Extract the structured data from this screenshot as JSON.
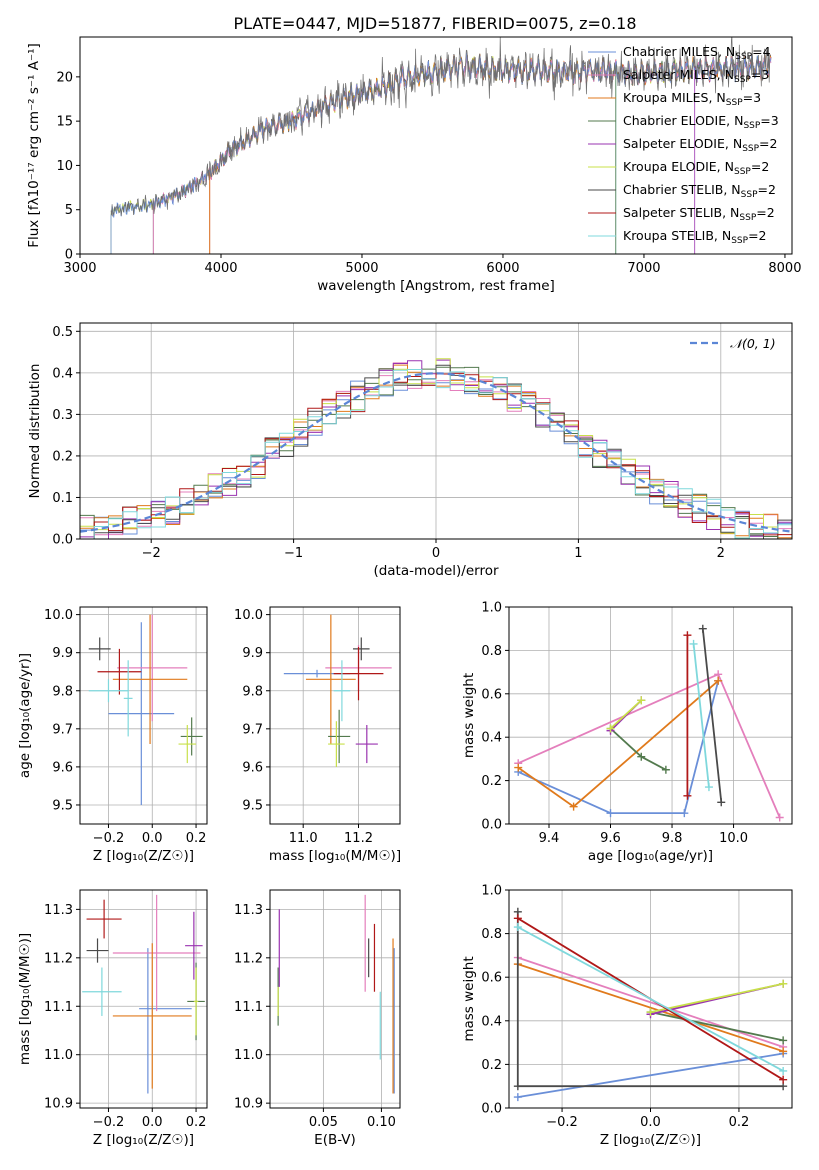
{
  "figure": {
    "title": "PLATE=0447, MJD=51877, FIBERID=0075, z=0.18"
  },
  "legend_entries": [
    {
      "name": "Chabrier MILES",
      "nssp": "4",
      "color": "#6a8fd8"
    },
    {
      "name": "Salpeter MILES",
      "nssp": "3",
      "color": "#e47fbc"
    },
    {
      "name": "Kroupa MILES",
      "nssp": "3",
      "color": "#e07a1c"
    },
    {
      "name": "Chabrier ELODIE",
      "nssp": "3",
      "color": "#537a4e"
    },
    {
      "name": "Salpeter ELODIE",
      "nssp": "2",
      "color": "#9a33b0"
    },
    {
      "name": "Kroupa ELODIE",
      "nssp": "2",
      "color": "#c8e04a"
    },
    {
      "name": "Chabrier STELIB",
      "nssp": "2",
      "color": "#4a4a4a"
    },
    {
      "name": "Salpeter STELIB",
      "nssp": "2",
      "color": "#b01818"
    },
    {
      "name": "Kroupa STELIB",
      "nssp": "2",
      "color": "#7fd8dc"
    }
  ],
  "chart_data": [
    {
      "id": "spectrum",
      "type": "line",
      "xlabel": "wavelength [Angstrom, rest frame]",
      "ylabel": "Flux [fλ10⁻¹⁷ erg cm⁻² s⁻¹ A⁻¹]",
      "xlim": [
        3000,
        8050
      ],
      "ylim": [
        0,
        24.5
      ],
      "xticks": [
        "3000",
        "4000",
        "5000",
        "6000",
        "7000",
        "8000"
      ],
      "yticks": [
        "0",
        "5",
        "10",
        "15",
        "20"
      ],
      "grid": false,
      "legend_position": "lower-right",
      "note": "continuum traced from the data curve; data shown in grey",
      "continuum": {
        "x": [
          3220,
          3300,
          3500,
          3700,
          3850,
          3950,
          4050,
          4200,
          4300,
          4500,
          4700,
          4900,
          5100,
          5300,
          5500,
          5700,
          5900,
          6100,
          6300,
          6500,
          6700,
          6900,
          7100,
          7300,
          7500,
          7700,
          7900
        ],
        "y": [
          4.8,
          5.2,
          5.5,
          6.8,
          8.2,
          9.6,
          11.5,
          13.0,
          14.2,
          15.0,
          16.5,
          17.8,
          18.5,
          19.8,
          20.5,
          21.2,
          21.0,
          20.6,
          20.8,
          20.5,
          20.8,
          20.3,
          20.6,
          20.8,
          20.9,
          21.0,
          21.2
        ]
      },
      "model_starts": [
        3220,
        3520,
        3920,
        6800,
        7360
      ]
    },
    {
      "id": "residual-histogram",
      "type": "histogram",
      "xlabel": "(data-model)/error",
      "ylabel": "Normed distribution",
      "xlim": [
        -2.5,
        2.5
      ],
      "ylim": [
        0,
        0.52
      ],
      "xticks": [
        "−2",
        "−1",
        "0",
        "1",
        "2"
      ],
      "yticks": [
        "0.0",
        "0.1",
        "0.2",
        "0.3",
        "0.4",
        "0.5"
      ],
      "grid": true,
      "legend_position": "top-right",
      "reference_curve": {
        "name": "𝒩(0, 1)",
        "color": "#5b86d6",
        "mu": 0,
        "sigma": 1
      }
    },
    {
      "id": "age-vs-Z",
      "type": "errorbar",
      "xlabel": "Z [log₁₀(Z/Z☉)]",
      "ylabel": "age  [log₁₀(age/yr)]",
      "xlim": [
        -0.33,
        0.25
      ],
      "ylim": [
        9.45,
        10.02
      ],
      "xticks": [
        "−0.2",
        "0.0",
        "0.2"
      ],
      "yticks": [
        "9.5",
        "9.6",
        "9.7",
        "9.8",
        "9.9",
        "10.0"
      ],
      "points": [
        {
          "x": -0.05,
          "y": 9.74,
          "xerr": 0.15,
          "yerr": 0.24,
          "c": 0
        },
        {
          "x": 0.0,
          "y": 9.86,
          "xerr": 0.16,
          "yerr": 0.14,
          "c": 1
        },
        {
          "x": -0.01,
          "y": 9.83,
          "xerr": 0.17,
          "yerr": 0.17,
          "c": 2
        },
        {
          "x": 0.18,
          "y": 9.68,
          "xerr": 0.05,
          "yerr": 0.05,
          "c": 3
        },
        {
          "x": 0.16,
          "y": 9.66,
          "xerr": 0.04,
          "yerr": 0.05,
          "c": 5
        },
        {
          "x": -0.24,
          "y": 9.91,
          "xerr": 0.05,
          "yerr": 0.03,
          "c": 6
        },
        {
          "x": -0.15,
          "y": 9.85,
          "xerr": 0.1,
          "yerr": 0.06,
          "c": 7
        },
        {
          "x": -0.2,
          "y": 9.8,
          "xerr": 0.09,
          "yerr": 0.03,
          "c": 8
        },
        {
          "x": -0.11,
          "y": 9.78,
          "xerr": 0.02,
          "yerr": 0.1,
          "c": 8
        }
      ]
    },
    {
      "id": "age-vs-mass",
      "type": "errorbar",
      "xlabel": "mass [log₁₀(M/M☉)]",
      "ylabel": "",
      "xlim": [
        10.88,
        11.35
      ],
      "ylim": [
        9.45,
        10.02
      ],
      "xticks": [
        "11.0",
        "11.2"
      ],
      "yticks": [
        "9.5",
        "9.6",
        "9.7",
        "9.8",
        "9.9",
        "10.0"
      ],
      "points": [
        {
          "x": 11.05,
          "y": 9.845,
          "xerr": 0.12,
          "yerr": 0.01,
          "c": 0
        },
        {
          "x": 11.2,
          "y": 9.86,
          "xerr": 0.12,
          "yerr": 0.06,
          "c": 1
        },
        {
          "x": 11.1,
          "y": 9.83,
          "xerr": 0.09,
          "yerr": 0.17,
          "c": 2
        },
        {
          "x": 11.13,
          "y": 9.68,
          "xerr": 0.04,
          "yerr": 0.07,
          "c": 3
        },
        {
          "x": 11.23,
          "y": 9.66,
          "xerr": 0.04,
          "yerr": 0.05,
          "c": 4
        },
        {
          "x": 11.12,
          "y": 9.66,
          "xerr": 0.03,
          "yerr": 0.06,
          "c": 5
        },
        {
          "x": 11.21,
          "y": 9.91,
          "xerr": 0.03,
          "yerr": 0.03,
          "c": 6
        },
        {
          "x": 11.2,
          "y": 9.845,
          "xerr": 0.09,
          "yerr": 0.07,
          "c": 7
        },
        {
          "x": 11.14,
          "y": 9.8,
          "xerr": 0.03,
          "yerr": 0.08,
          "c": 8
        }
      ]
    },
    {
      "id": "mass-weight-vs-age",
      "type": "line",
      "xlabel": "age  [log₁₀(age/yr)]",
      "ylabel": "mass weight",
      "xlim": [
        9.27,
        10.19
      ],
      "ylim": [
        0,
        1.0
      ],
      "xticks": [
        "9.4",
        "9.6",
        "9.8",
        "10.0"
      ],
      "yticks": [
        "0.0",
        "0.2",
        "0.4",
        "0.6",
        "0.8",
        "1.0"
      ],
      "grid": true,
      "series": [
        {
          "c": 0,
          "x": [
            9.3,
            9.6,
            9.84,
            9.95
          ],
          "y": [
            0.24,
            0.05,
            0.05,
            0.66
          ]
        },
        {
          "c": 1,
          "x": [
            9.3,
            9.95,
            10.15
          ],
          "y": [
            0.28,
            0.69,
            0.03
          ]
        },
        {
          "c": 2,
          "x": [
            9.3,
            9.48,
            9.95
          ],
          "y": [
            0.26,
            0.08,
            0.66
          ]
        },
        {
          "c": 3,
          "x": [
            9.6,
            9.7,
            9.78
          ],
          "y": [
            0.44,
            0.31,
            0.25
          ]
        },
        {
          "c": 4,
          "x": [
            9.6,
            9.7
          ],
          "y": [
            0.43,
            0.57
          ]
        },
        {
          "c": 5,
          "x": [
            9.6,
            9.7
          ],
          "y": [
            0.44,
            0.57
          ]
        },
        {
          "c": 6,
          "x": [
            9.9,
            9.96
          ],
          "y": [
            0.9,
            0.1
          ]
        },
        {
          "c": 7,
          "x": [
            9.85,
            9.85
          ],
          "y": [
            0.87,
            0.13
          ]
        },
        {
          "c": 8,
          "x": [
            9.87,
            9.92
          ],
          "y": [
            0.83,
            0.17
          ]
        }
      ]
    },
    {
      "id": "mass-vs-Z",
      "type": "errorbar",
      "xlabel": "Z [log₁₀(Z/Z☉)]",
      "ylabel": "mass [log₁₀(M/M☉)]",
      "xlim": [
        -0.33,
        0.25
      ],
      "ylim": [
        10.89,
        11.34
      ],
      "xticks": [
        "−0.2",
        "0.0",
        "0.2"
      ],
      "yticks": [
        "10.9",
        "11.0",
        "11.1",
        "11.2",
        "11.3"
      ],
      "points": [
        {
          "x": 0.06,
          "y": 11.095,
          "xerr": 0.12,
          "yerr": 0.0,
          "c": 0
        },
        {
          "x": -0.02,
          "y": 11.07,
          "xerr": 0.0,
          "yerr": 0.15,
          "c": 0
        },
        {
          "x": 0.02,
          "y": 11.21,
          "xerr": 0.2,
          "yerr": 0.12,
          "c": 1
        },
        {
          "x": 0.0,
          "y": 11.08,
          "xerr": 0.18,
          "yerr": 0.15,
          "c": 2
        },
        {
          "x": 0.2,
          "y": 11.11,
          "xerr": 0.04,
          "yerr": 0.08,
          "c": 3
        },
        {
          "x": 0.19,
          "y": 11.225,
          "xerr": 0.04,
          "yerr": 0.07,
          "c": 4
        },
        {
          "x": 0.2,
          "y": 11.11,
          "xerr": 0.01,
          "yerr": 0.07,
          "c": 5
        },
        {
          "x": -0.25,
          "y": 11.215,
          "xerr": 0.05,
          "yerr": 0.025,
          "c": 6
        },
        {
          "x": -0.22,
          "y": 11.28,
          "xerr": 0.08,
          "yerr": 0.04,
          "c": 7
        },
        {
          "x": -0.23,
          "y": 11.13,
          "xerr": 0.09,
          "yerr": 0.05,
          "c": 8
        }
      ]
    },
    {
      "id": "mass-vs-EBV",
      "type": "errorbar",
      "xlabel": "E(B-V)",
      "ylabel": "",
      "xlim": [
        0.004,
        0.116
      ],
      "ylim": [
        10.89,
        11.34
      ],
      "xticks": [
        "0.05",
        "0.10"
      ],
      "yticks": [
        "10.9",
        "11.0",
        "11.1",
        "11.2",
        "11.3"
      ],
      "points": [
        {
          "x": 0.111,
          "y": 11.07,
          "xerr": 0,
          "yerr": 0.15,
          "c": 0
        },
        {
          "x": 0.086,
          "y": 11.23,
          "xerr": 0,
          "yerr": 0.1,
          "c": 1
        },
        {
          "x": 0.11,
          "y": 11.08,
          "xerr": 0,
          "yerr": 0.16,
          "c": 2
        },
        {
          "x": 0.011,
          "y": 11.12,
          "xerr": 0,
          "yerr": 0.06,
          "c": 3
        },
        {
          "x": 0.012,
          "y": 11.22,
          "xerr": 0,
          "yerr": 0.08,
          "c": 4
        },
        {
          "x": 0.011,
          "y": 11.11,
          "xerr": 0,
          "yerr": 0.03,
          "c": 5
        },
        {
          "x": 0.089,
          "y": 11.2,
          "xerr": 0,
          "yerr": 0.04,
          "c": 6
        },
        {
          "x": 0.094,
          "y": 11.2,
          "xerr": 0,
          "yerr": 0.07,
          "c": 7
        },
        {
          "x": 0.099,
          "y": 11.06,
          "xerr": 0,
          "yerr": 0.07,
          "c": 8
        }
      ]
    },
    {
      "id": "mass-weight-vs-Z",
      "type": "line",
      "xlabel": "Z [log₁₀(Z/Z☉)]",
      "ylabel": "mass weight",
      "xlim": [
        -0.32,
        0.32
      ],
      "ylim": [
        0,
        1.0
      ],
      "xticks": [
        "−0.2",
        "0.0",
        "0.2"
      ],
      "yticks": [
        "0.0",
        "0.2",
        "0.4",
        "0.6",
        "0.8",
        "1.0"
      ],
      "grid": true,
      "series": [
        {
          "c": 0,
          "x": [
            -0.3,
            0.3
          ],
          "y": [
            0.05,
            0.25
          ]
        },
        {
          "c": 1,
          "x": [
            -0.3,
            0.3
          ],
          "y": [
            0.69,
            0.28
          ]
        },
        {
          "c": 2,
          "x": [
            -0.3,
            0.3
          ],
          "y": [
            0.66,
            0.26
          ]
        },
        {
          "c": 3,
          "x": [
            0.0,
            0.3
          ],
          "y": [
            0.44,
            0.31
          ]
        },
        {
          "c": 4,
          "x": [
            0.0,
            0.3
          ],
          "y": [
            0.43,
            0.57
          ]
        },
        {
          "c": 5,
          "x": [
            0.0,
            0.3
          ],
          "y": [
            0.44,
            0.57
          ]
        },
        {
          "c": 6,
          "x": [
            -0.3,
            -0.3,
            0.3
          ],
          "y": [
            0.9,
            0.1,
            0.1
          ]
        },
        {
          "c": 7,
          "x": [
            -0.3,
            0.3
          ],
          "y": [
            0.87,
            0.13
          ]
        },
        {
          "c": 8,
          "x": [
            -0.3,
            0.3
          ],
          "y": [
            0.83,
            0.17
          ]
        }
      ]
    }
  ]
}
